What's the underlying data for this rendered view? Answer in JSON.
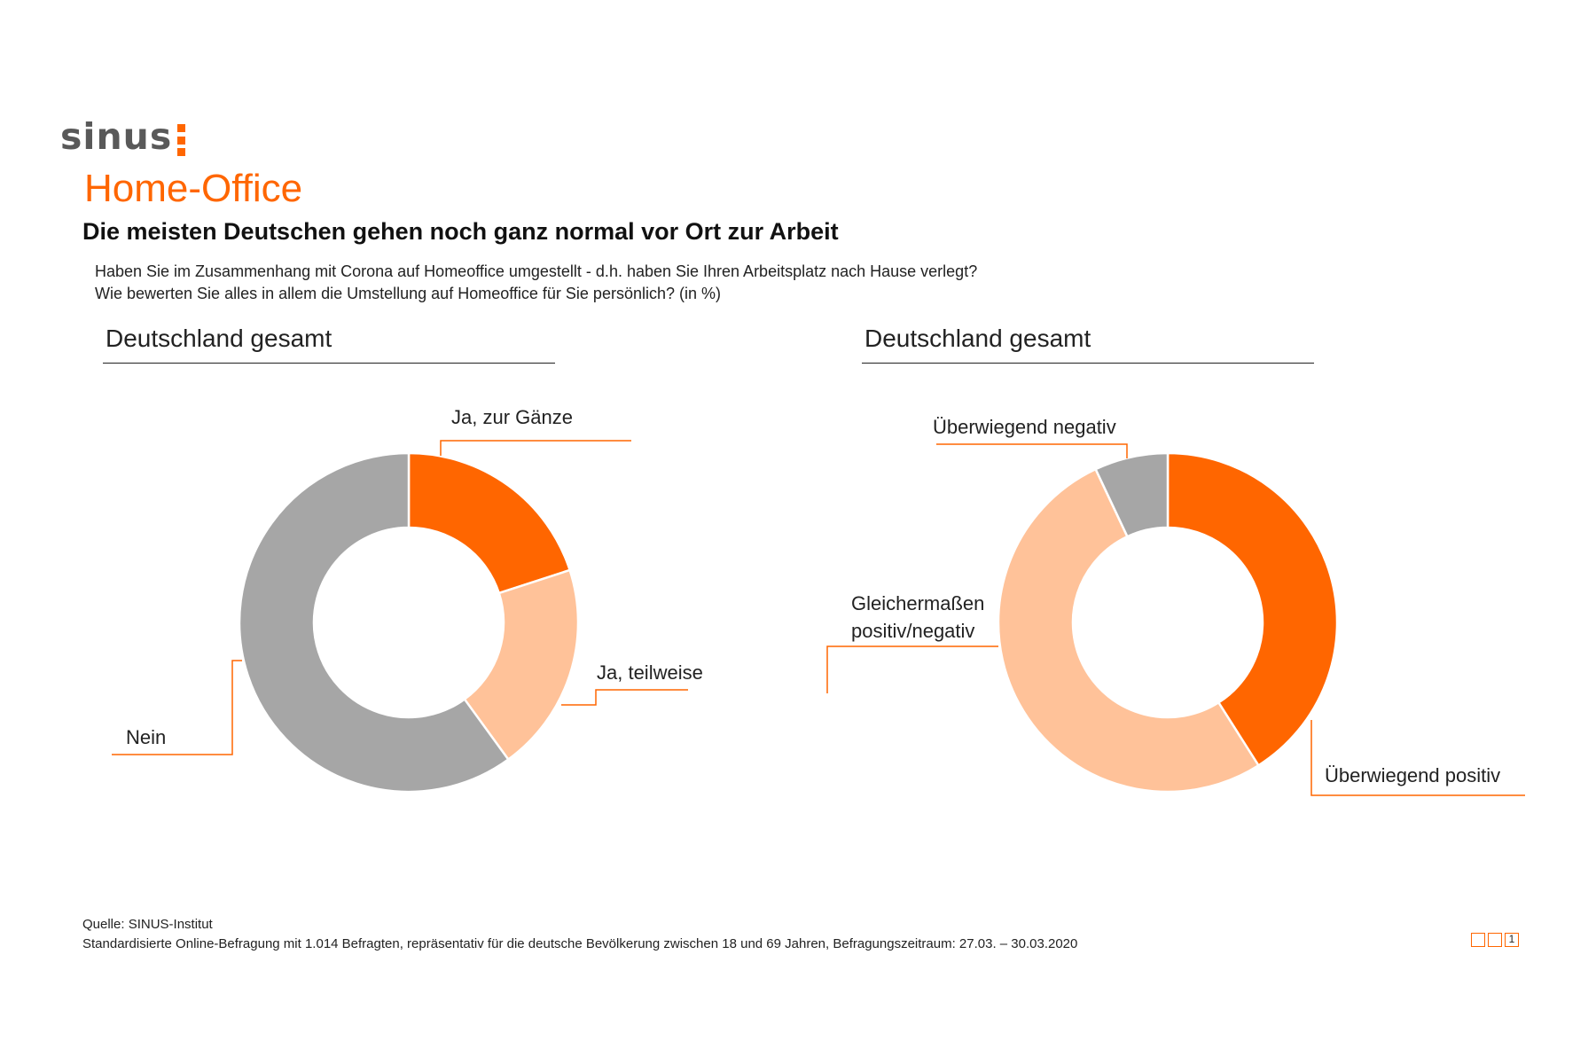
{
  "logo": {
    "text": "sinus"
  },
  "section_title": "Home-Office",
  "headline": "Die meisten Deutschen gehen noch ganz normal vor Ort zur Arbeit",
  "questions": [
    "Haben Sie im Zusammenhang mit Corona auf Homeoffice umgestellt - d.h. haben Sie Ihren Arbeitsplatz nach Hause verlegt?",
    "Wie bewerten  Sie alles in allem die Umstellung auf Homeoffice für Sie persönlich? (in %)"
  ],
  "colors": {
    "accent": "#ff6600",
    "light": "#ffc299",
    "grey": "#a6a6a6"
  },
  "chart_data": [
    {
      "type": "pie",
      "title": "Deutschland gesamt",
      "series": [
        {
          "name": "Ja, zur Gänze",
          "value": 20,
          "color": "#ff6600"
        },
        {
          "name": "Ja, teilweise",
          "value": 20,
          "color": "#ffc299"
        },
        {
          "name": "Nein",
          "value": 60,
          "color": "#a6a6a6"
        }
      ]
    },
    {
      "type": "pie",
      "title": "Deutschland gesamt",
      "series": [
        {
          "name": "Überwiegend positiv",
          "value": 41,
          "color": "#ff6600"
        },
        {
          "name": "Gleichermaßen positiv/negativ",
          "value": 52,
          "color": "#ffc299"
        },
        {
          "name": "Überwiegend negativ",
          "value": 7,
          "color": "#a6a6a6"
        }
      ]
    }
  ],
  "labels": {
    "c1_s0": [
      "Ja, zur Gänze"
    ],
    "c1_s1": [
      "Ja, teilweise"
    ],
    "c1_s2": [
      "Nein"
    ],
    "c2_s0": [
      "Überwiegend positiv"
    ],
    "c2_s1": [
      "Gleichermaßen",
      "positiv/negativ"
    ],
    "c2_s2": [
      "Überwiegend negativ"
    ]
  },
  "source": {
    "line1": "Quelle: SINUS-Institut",
    "line2": "Standardisierte Online-Befragung mit 1.014 Befragten,  repräsentativ für die deutsche Bevölkerung zwischen 18 und 69 Jahren, Befragungszeitraum: 27.03. – 30.03.2020"
  },
  "page_number": "1"
}
